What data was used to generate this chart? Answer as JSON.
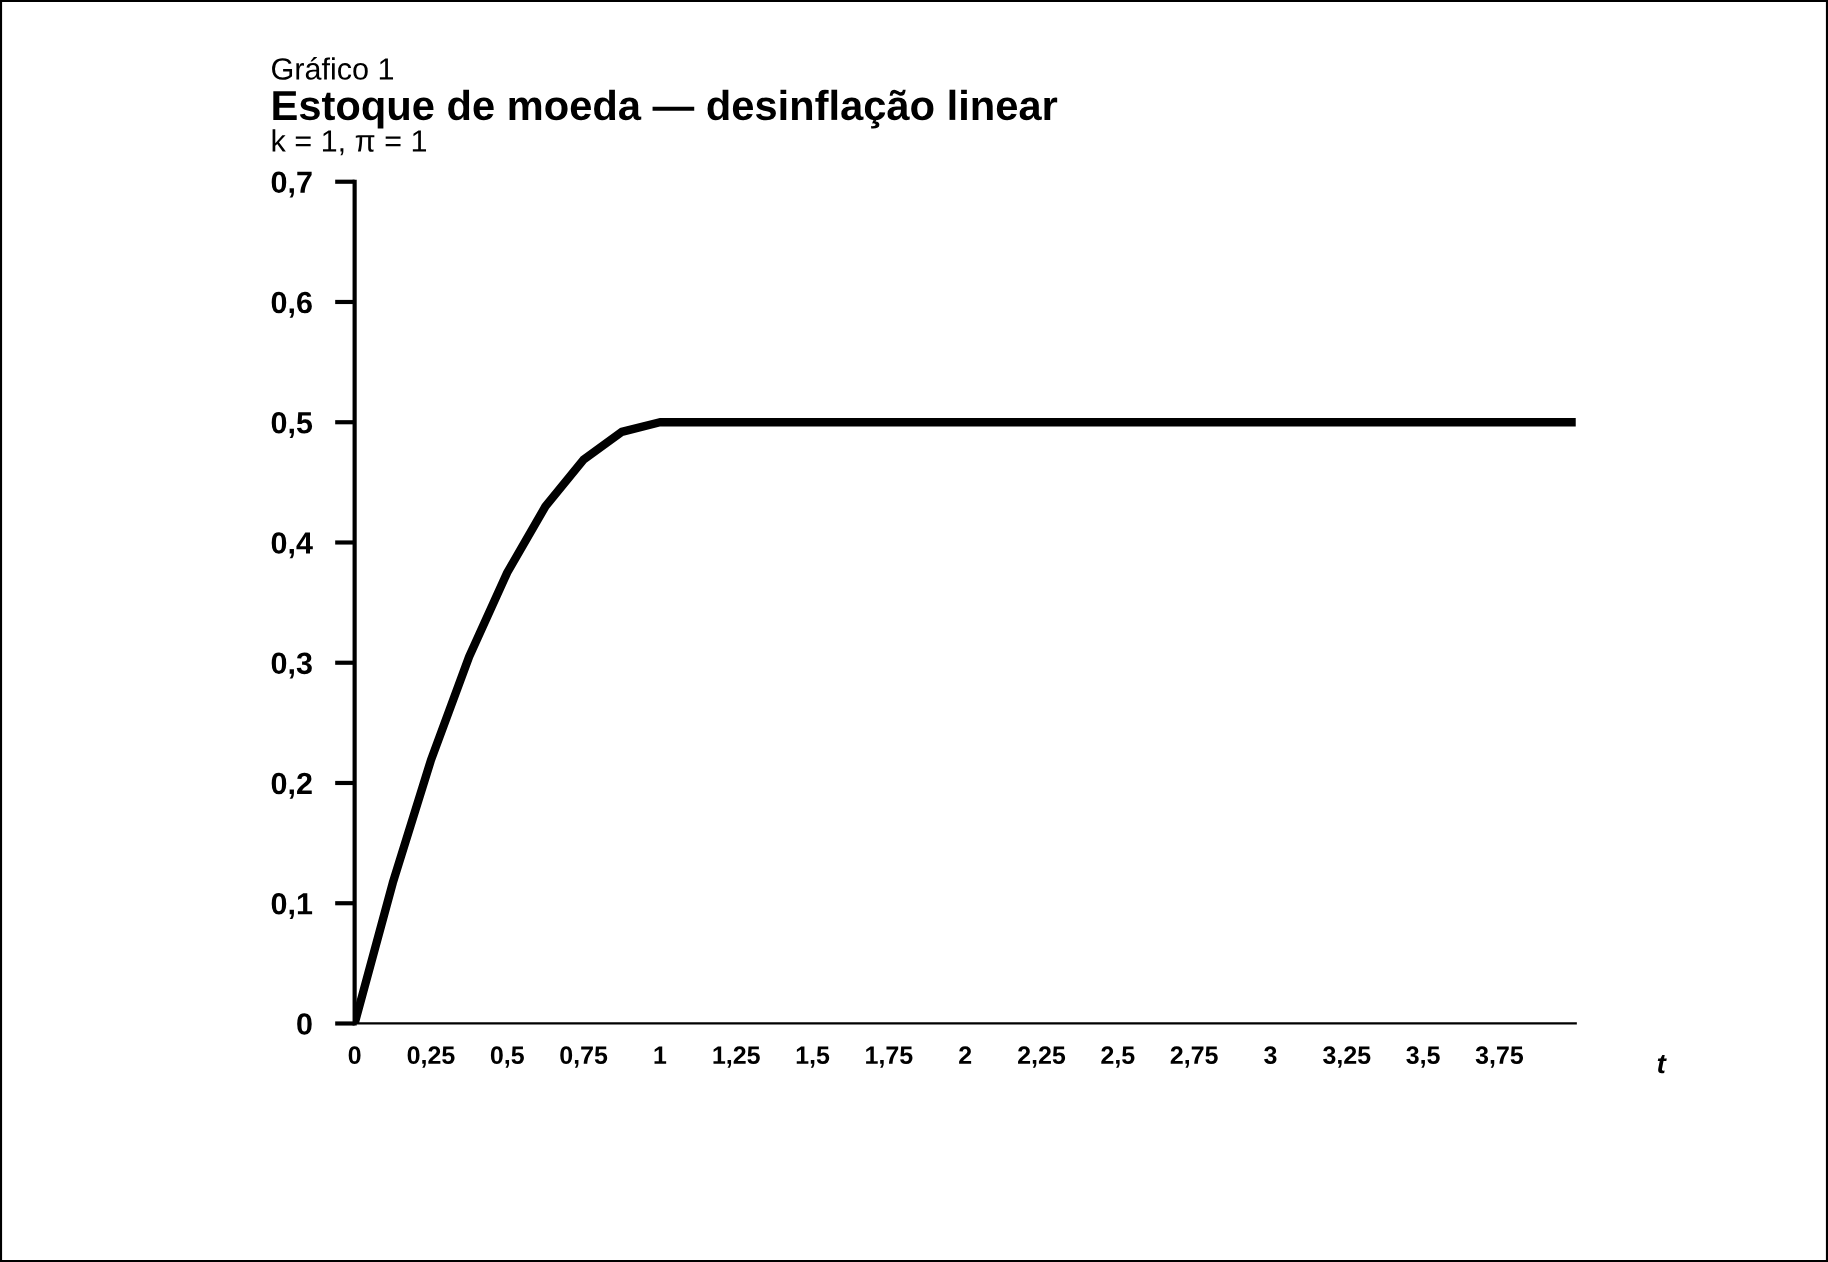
{
  "chart_data": {
    "type": "line",
    "title": "Estoque de moeda — desinflação linear",
    "subtitle": "k = 1, π = 1",
    "annotations": [
      "Gráfico 1"
    ],
    "xlabel": "t",
    "x": [
      0,
      0.125,
      0.25,
      0.375,
      0.5,
      0.625,
      0.75,
      0.875,
      1,
      1.5,
      2,
      2.5,
      3,
      3.5,
      4
    ],
    "values": [
      0,
      0.117,
      0.219,
      0.305,
      0.375,
      0.43,
      0.469,
      0.492,
      0.5,
      0.5,
      0.5,
      0.5,
      0.5,
      0.5,
      0.5
    ],
    "color": "#000000",
    "xlim": [
      0,
      4
    ],
    "ylim": [
      0,
      0.7
    ],
    "xticks": [
      0,
      {
        "value": 0.25,
        "label": "0,25"
      },
      {
        "value": 0.5,
        "label": "0,5"
      },
      {
        "value": 0.75,
        "label": "0,75"
      },
      1,
      {
        "value": 1.25,
        "label": "1,25"
      },
      {
        "value": 1.5,
        "label": "1,5"
      },
      {
        "value": 1.75,
        "label": "1,75"
      },
      2,
      {
        "value": 2.25,
        "label": "2,25"
      },
      {
        "value": 2.5,
        "label": "2,5"
      },
      {
        "value": 2.75,
        "label": "2,75"
      },
      3,
      {
        "value": 3.25,
        "label": "3,25"
      },
      {
        "value": 3.5,
        "label": "3,5"
      },
      {
        "value": 3.75,
        "label": "3,75"
      }
    ],
    "yticks": [
      0,
      {
        "value": 0.1,
        "label": "0,1"
      },
      {
        "value": 0.2,
        "label": "0,2"
      },
      {
        "value": 0.3,
        "label": "0,3"
      },
      {
        "value": 0.4,
        "label": "0,4"
      },
      {
        "value": 0.5,
        "label": "0,5"
      },
      {
        "value": 0.6,
        "label": "0,6"
      },
      {
        "value": 0.7,
        "label": "0,7"
      }
    ],
    "grid": false,
    "legend": false,
    "marker": "none",
    "line_style": "solid"
  }
}
